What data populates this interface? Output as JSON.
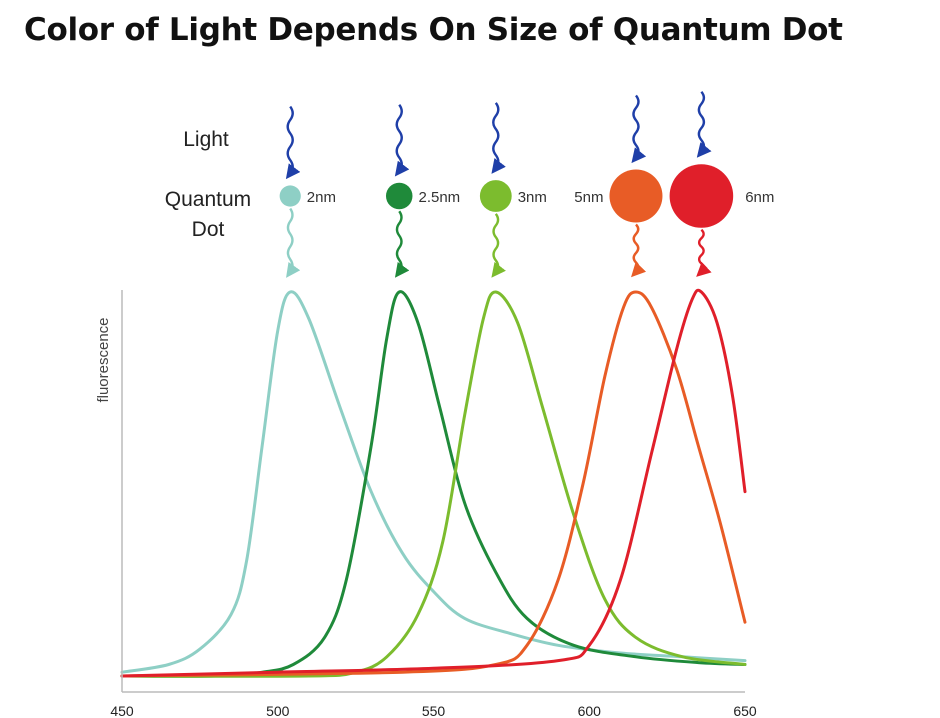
{
  "title": "Color of Light Depends On Size of Quantum Dot",
  "labels": {
    "light": "Light",
    "quantum_dot_line1": "Quantum",
    "quantum_dot_line2": "Dot"
  },
  "chart_data": {
    "type": "line",
    "title": "Color of Light Depends On Size of Quantum Dot",
    "xlabel": "",
    "ylabel": "fluorescence",
    "xlim": [
      450,
      650
    ],
    "x_ticks": [
      450,
      500,
      550,
      600,
      650
    ],
    "grid": false,
    "legend": "none",
    "series": [
      {
        "size_label": "2nm",
        "color": "#8ecfc5",
        "dot_size": 2.0,
        "peak_x": 504,
        "points": [
          [
            450,
            0.01
          ],
          [
            465,
            0.03
          ],
          [
            475,
            0.07
          ],
          [
            485,
            0.16
          ],
          [
            490,
            0.3
          ],
          [
            495,
            0.6
          ],
          [
            500,
            0.9
          ],
          [
            504,
            1.0
          ],
          [
            510,
            0.93
          ],
          [
            520,
            0.7
          ],
          [
            530,
            0.48
          ],
          [
            540,
            0.32
          ],
          [
            550,
            0.22
          ],
          [
            560,
            0.15
          ],
          [
            575,
            0.11
          ],
          [
            590,
            0.08
          ],
          [
            610,
            0.06
          ],
          [
            630,
            0.05
          ],
          [
            650,
            0.04
          ]
        ]
      },
      {
        "size_label": "2.5nm",
        "color": "#1f8a3a",
        "dot_size": 2.5,
        "peak_x": 539,
        "points": [
          [
            450,
            0.0
          ],
          [
            480,
            0.0
          ],
          [
            495,
            0.01
          ],
          [
            505,
            0.03
          ],
          [
            515,
            0.1
          ],
          [
            522,
            0.25
          ],
          [
            530,
            0.6
          ],
          [
            535,
            0.88
          ],
          [
            539,
            1.0
          ],
          [
            545,
            0.92
          ],
          [
            552,
            0.7
          ],
          [
            560,
            0.45
          ],
          [
            570,
            0.27
          ],
          [
            580,
            0.15
          ],
          [
            595,
            0.08
          ],
          [
            615,
            0.05
          ],
          [
            635,
            0.035
          ],
          [
            650,
            0.03
          ]
        ]
      },
      {
        "size_label": "3nm",
        "color": "#7cbc2e",
        "dot_size": 3.0,
        "peak_x": 570,
        "points": [
          [
            450,
            0.0
          ],
          [
            510,
            0.0
          ],
          [
            525,
            0.01
          ],
          [
            535,
            0.05
          ],
          [
            545,
            0.16
          ],
          [
            553,
            0.35
          ],
          [
            560,
            0.68
          ],
          [
            566,
            0.93
          ],
          [
            570,
            1.0
          ],
          [
            577,
            0.92
          ],
          [
            585,
            0.7
          ],
          [
            595,
            0.42
          ],
          [
            605,
            0.2
          ],
          [
            615,
            0.1
          ],
          [
            630,
            0.05
          ],
          [
            650,
            0.03
          ]
        ]
      },
      {
        "size_label": "5nm",
        "color": "#e85c26",
        "dot_size": 5.0,
        "peak_x": 615,
        "points": [
          [
            450,
            0.0
          ],
          [
            540,
            0.01
          ],
          [
            570,
            0.03
          ],
          [
            580,
            0.08
          ],
          [
            590,
            0.25
          ],
          [
            598,
            0.5
          ],
          [
            605,
            0.78
          ],
          [
            611,
            0.96
          ],
          [
            615,
            1.0
          ],
          [
            620,
            0.96
          ],
          [
            628,
            0.8
          ],
          [
            635,
            0.6
          ],
          [
            642,
            0.4
          ],
          [
            650,
            0.14
          ]
        ]
      },
      {
        "size_label": "6nm",
        "color": "#e01f2a",
        "dot_size": 6.0,
        "peak_x": 636,
        "points": [
          [
            450,
            0.0
          ],
          [
            500,
            0.01
          ],
          [
            550,
            0.02
          ],
          [
            590,
            0.04
          ],
          [
            600,
            0.08
          ],
          [
            610,
            0.25
          ],
          [
            620,
            0.58
          ],
          [
            628,
            0.85
          ],
          [
            633,
            0.98
          ],
          [
            636,
            1.0
          ],
          [
            641,
            0.92
          ],
          [
            646,
            0.73
          ],
          [
            650,
            0.48
          ]
        ]
      }
    ]
  }
}
